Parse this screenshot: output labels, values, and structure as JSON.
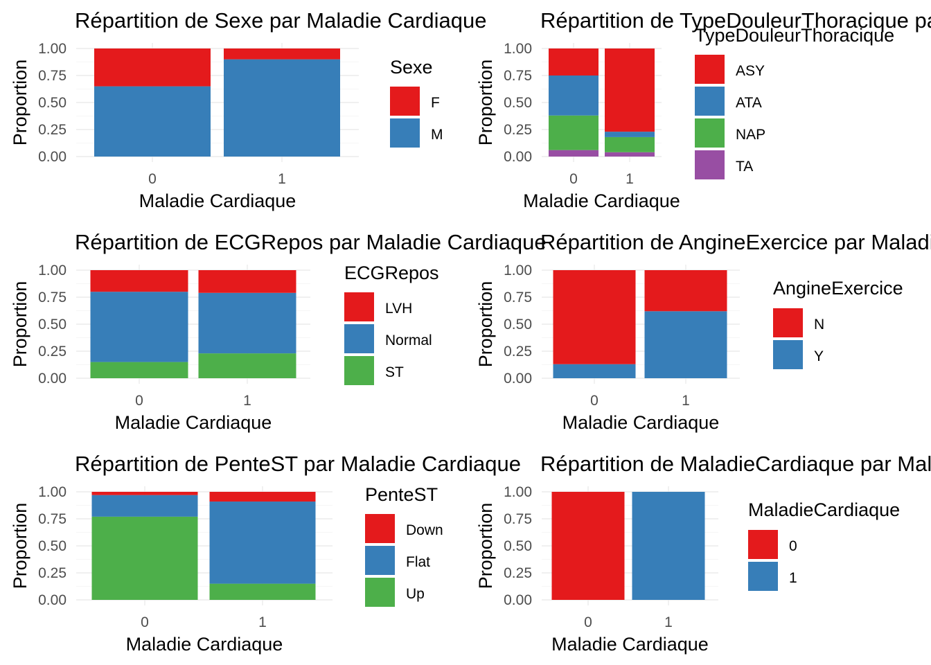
{
  "chart_data": [
    {
      "type": "bar",
      "stacked": true,
      "title": "Répartition de Sexe par Maladie Cardiaque",
      "xlabel": "Maladie Cardiaque",
      "ylabel": "Proportion",
      "ylim": [
        0,
        1
      ],
      "yticks": [
        "0.00",
        "0.25",
        "0.50",
        "0.75",
        "1.00"
      ],
      "grid": true,
      "legend_position": "right",
      "legend_title": "Sexe",
      "categories": [
        "0",
        "1"
      ],
      "series": [
        {
          "name": "F",
          "color": "#E41A1C",
          "values": [
            0.35,
            0.1
          ]
        },
        {
          "name": "M",
          "color": "#377EB8",
          "values": [
            0.65,
            0.9
          ]
        }
      ]
    },
    {
      "type": "bar",
      "stacked": true,
      "title": "Répartition de TypeDouleurThoracique par Maladie Cardiaque",
      "xlabel": "Maladie Cardiaque",
      "ylabel": "Proportion",
      "ylim": [
        0,
        1
      ],
      "yticks": [
        "0.00",
        "0.25",
        "0.50",
        "0.75",
        "1.00"
      ],
      "grid": true,
      "legend_position": "right",
      "legend_title": "TypeDouleurThoracique",
      "categories": [
        "0",
        "1"
      ],
      "series": [
        {
          "name": "ASY",
          "color": "#E41A1C",
          "values": [
            0.25,
            0.77
          ]
        },
        {
          "name": "ATA",
          "color": "#377EB8",
          "values": [
            0.37,
            0.05
          ]
        },
        {
          "name": "NAP",
          "color": "#4DAF4A",
          "values": [
            0.32,
            0.14
          ]
        },
        {
          "name": "TA",
          "color": "#984EA3",
          "values": [
            0.06,
            0.04
          ]
        }
      ]
    },
    {
      "type": "bar",
      "stacked": true,
      "title": "Répartition de ECGRepos par Maladie Cardiaque",
      "xlabel": "Maladie Cardiaque",
      "ylabel": "Proportion",
      "ylim": [
        0,
        1
      ],
      "yticks": [
        "0.00",
        "0.25",
        "0.50",
        "0.75",
        "1.00"
      ],
      "grid": true,
      "legend_position": "right",
      "legend_title": "ECGRepos",
      "categories": [
        "0",
        "1"
      ],
      "series": [
        {
          "name": "LVH",
          "color": "#E41A1C",
          "values": [
            0.2,
            0.21
          ]
        },
        {
          "name": "Normal",
          "color": "#377EB8",
          "values": [
            0.65,
            0.56
          ]
        },
        {
          "name": "ST",
          "color": "#4DAF4A",
          "values": [
            0.15,
            0.23
          ]
        }
      ]
    },
    {
      "type": "bar",
      "stacked": true,
      "title": "Répartition de AngineExercice par Maladie Cardiaque",
      "xlabel": "Maladie Cardiaque",
      "ylabel": "Proportion",
      "ylim": [
        0,
        1
      ],
      "yticks": [
        "0.00",
        "0.25",
        "0.50",
        "0.75",
        "1.00"
      ],
      "grid": true,
      "legend_position": "right",
      "legend_title": "AngineExercice",
      "categories": [
        "0",
        "1"
      ],
      "series": [
        {
          "name": "N",
          "color": "#E41A1C",
          "values": [
            0.87,
            0.38
          ]
        },
        {
          "name": "Y",
          "color": "#377EB8",
          "values": [
            0.13,
            0.62
          ]
        }
      ]
    },
    {
      "type": "bar",
      "stacked": true,
      "title": "Répartition de PenteST par Maladie Cardiaque",
      "xlabel": "Maladie Cardiaque",
      "ylabel": "Proportion",
      "ylim": [
        0,
        1
      ],
      "yticks": [
        "0.00",
        "0.25",
        "0.50",
        "0.75",
        "1.00"
      ],
      "grid": true,
      "legend_position": "right",
      "legend_title": "PenteST",
      "categories": [
        "0",
        "1"
      ],
      "series": [
        {
          "name": "Down",
          "color": "#E41A1C",
          "values": [
            0.03,
            0.09
          ]
        },
        {
          "name": "Flat",
          "color": "#377EB8",
          "values": [
            0.2,
            0.76
          ]
        },
        {
          "name": "Up",
          "color": "#4DAF4A",
          "values": [
            0.77,
            0.15
          ]
        }
      ]
    },
    {
      "type": "bar",
      "stacked": true,
      "title": "Répartition de MaladieCardiaque par Maladie Cardiaque",
      "xlabel": "Maladie Cardiaque",
      "ylabel": "Proportion",
      "ylim": [
        0,
        1
      ],
      "yticks": [
        "0.00",
        "0.25",
        "0.50",
        "0.75",
        "1.00"
      ],
      "grid": true,
      "legend_position": "right",
      "legend_title": "MaladieCardiaque",
      "categories": [
        "0",
        "1"
      ],
      "series": [
        {
          "name": "0",
          "color": "#E41A1C",
          "values": [
            1.0,
            0.0
          ]
        },
        {
          "name": "1",
          "color": "#377EB8",
          "values": [
            0.0,
            1.0
          ]
        }
      ]
    }
  ]
}
